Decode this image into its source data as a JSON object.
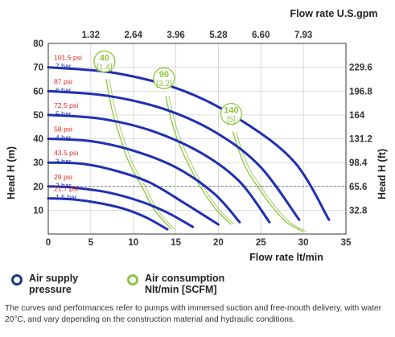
{
  "chart_data": {
    "type": "line",
    "x_axis": {
      "label": "Flow rate lt/min",
      "range": [
        0,
        35
      ],
      "ticks": [
        0,
        5,
        10,
        15,
        20,
        25,
        30,
        35
      ]
    },
    "x_axis_top": {
      "label": "Flow rate U.S.gpm",
      "ticks": [
        "1.32",
        "2.64",
        "3.96",
        "5.28",
        "6.60",
        "7.93"
      ]
    },
    "y_axis": {
      "label": "Head H (m)",
      "range": [
        0,
        80
      ],
      "ticks": [
        10,
        20,
        30,
        40,
        50,
        60,
        70,
        80
      ]
    },
    "y_axis_right": {
      "label": "Head H (ft)",
      "ticks": [
        "32.8",
        "65.6",
        "98.4",
        "131.2",
        "164",
        "196.8",
        "229.6"
      ]
    },
    "grid": true,
    "pressure_series": [
      {
        "psi": "101.5 psi",
        "bar": "7 bar",
        "points": [
          [
            0,
            70
          ],
          [
            8,
            67.5
          ],
          [
            16,
            60
          ],
          [
            23,
            47
          ],
          [
            29,
            30
          ],
          [
            33,
            6
          ]
        ]
      },
      {
        "psi": "87 psi",
        "bar": "6 bar",
        "points": [
          [
            0,
            60
          ],
          [
            7,
            58
          ],
          [
            14,
            52
          ],
          [
            20,
            42
          ],
          [
            25,
            28
          ],
          [
            29.5,
            6
          ]
        ]
      },
      {
        "psi": "72.5 psi",
        "bar": "5 bar",
        "points": [
          [
            0,
            50
          ],
          [
            6,
            48.5
          ],
          [
            12,
            43.5
          ],
          [
            18,
            34
          ],
          [
            22.5,
            22
          ],
          [
            26,
            5
          ]
        ]
      },
      {
        "psi": "58 psi",
        "bar": "4 bar",
        "points": [
          [
            0,
            40
          ],
          [
            5,
            39
          ],
          [
            10,
            35
          ],
          [
            15,
            28
          ],
          [
            19.5,
            17
          ],
          [
            22.5,
            5
          ]
        ]
      },
      {
        "psi": "43.5 psi",
        "bar": "3 bar",
        "points": [
          [
            0,
            30
          ],
          [
            4,
            29.5
          ],
          [
            8,
            26.5
          ],
          [
            12,
            21.5
          ],
          [
            16,
            13
          ],
          [
            20,
            4
          ]
        ]
      },
      {
        "psi": "29 psi",
        "bar": "2 bar",
        "points": [
          [
            0,
            20
          ],
          [
            3,
            19.5
          ],
          [
            7,
            17.5
          ],
          [
            11,
            13.5
          ],
          [
            14,
            9
          ],
          [
            17,
            3
          ]
        ]
      },
      {
        "psi": "21.7 psi",
        "bar": "1.5 bar",
        "points": [
          [
            0,
            15
          ],
          [
            3,
            14.5
          ],
          [
            6,
            13
          ],
          [
            9,
            10.5
          ],
          [
            11.5,
            7
          ],
          [
            14,
            2
          ]
        ]
      }
    ],
    "air_series": [
      {
        "value": "40",
        "unit": "[1.4]",
        "points": [
          [
            6.8,
            65
          ],
          [
            7.5,
            52
          ],
          [
            8.5,
            40
          ],
          [
            9.5,
            30
          ],
          [
            11,
            20
          ],
          [
            12.5,
            10
          ],
          [
            14.5,
            2
          ]
        ]
      },
      {
        "value": "90",
        "unit": "[3.2]",
        "points": [
          [
            13.8,
            58
          ],
          [
            14.6,
            46
          ],
          [
            15.6,
            36
          ],
          [
            16.8,
            27
          ],
          [
            18.2,
            18
          ],
          [
            19.8,
            10
          ],
          [
            21.5,
            4
          ]
        ]
      },
      {
        "value": "140",
        "unit": "[5]",
        "points": [
          [
            21.7,
            43
          ],
          [
            22.5,
            34
          ],
          [
            23.5,
            26
          ],
          [
            24.8,
            19
          ],
          [
            26.2,
            12
          ],
          [
            28,
            5
          ],
          [
            30,
            1
          ]
        ]
      }
    ]
  },
  "legend": {
    "pressure_line1": "Air supply",
    "pressure_line2": "pressure",
    "air_line1": "Air consumption",
    "air_line2": "Nlt/min [SCFM]"
  },
  "colors": {
    "pressure": "#1f2fb3",
    "air": "#8dc63f",
    "psi_label": "#d9261c",
    "bar_label": "#1f2fb3",
    "ring_pressure": "#1a3a7a"
  },
  "footnote": "The curves and performances refer to pumps with immersed suction and free-mouth delivery, with water 20°C, and vary depending on the construction material and hydraulic conditions."
}
